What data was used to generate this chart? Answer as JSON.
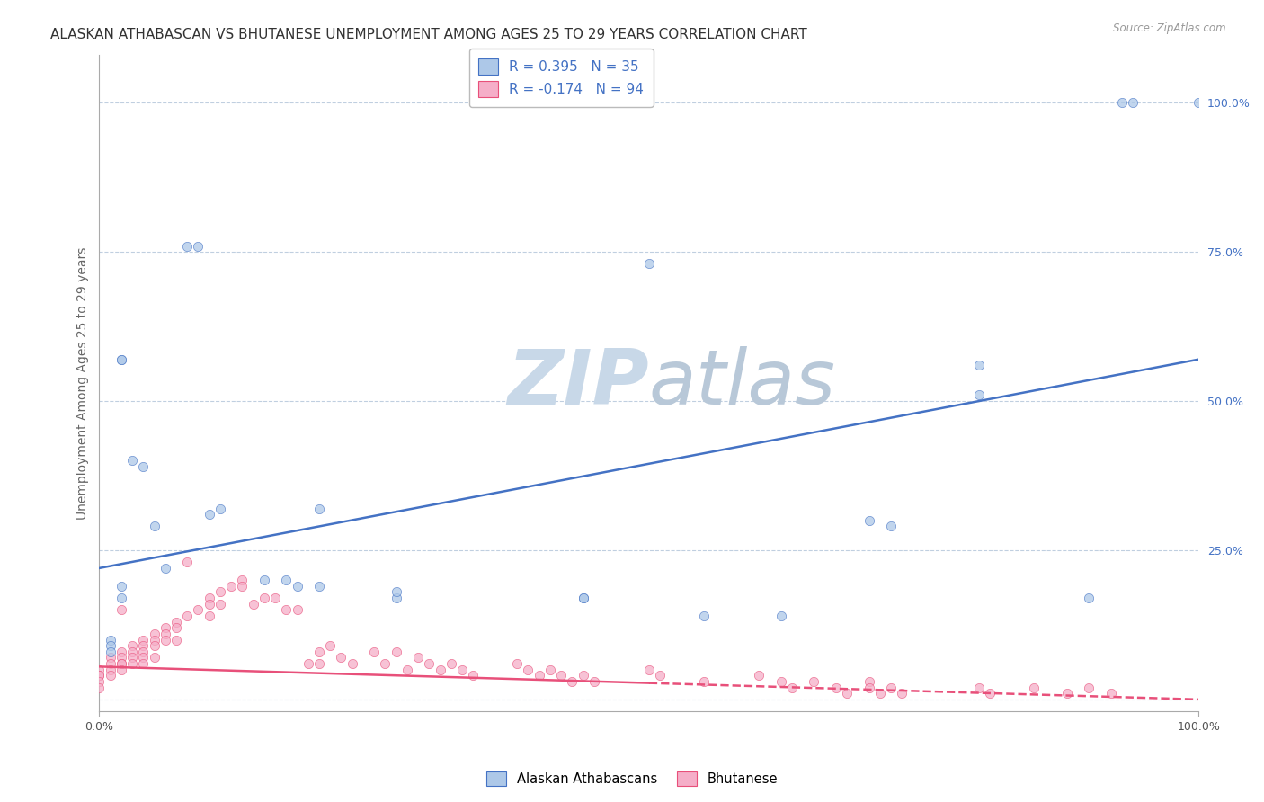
{
  "title": "ALASKAN ATHABASCAN VS BHUTANESE UNEMPLOYMENT AMONG AGES 25 TO 29 YEARS CORRELATION CHART",
  "source": "Source: ZipAtlas.com",
  "ylabel": "Unemployment Among Ages 25 to 29 years",
  "legend_label_blue": "Alaskan Athabascans",
  "legend_label_pink": "Bhutanese",
  "R_blue": 0.395,
  "N_blue": 35,
  "R_pink": -0.174,
  "N_pink": 94,
  "blue_scatter_x": [
    0.01,
    0.01,
    0.01,
    0.02,
    0.02,
    0.02,
    0.02,
    0.03,
    0.04,
    0.05,
    0.06,
    0.08,
    0.09,
    0.1,
    0.11,
    0.15,
    0.17,
    0.18,
    0.2,
    0.2,
    0.27,
    0.27,
    0.5,
    0.55,
    0.62,
    0.7,
    0.72,
    0.8,
    0.8,
    0.9,
    0.93,
    0.94,
    1.0,
    0.44,
    0.44
  ],
  "blue_scatter_y": [
    0.1,
    0.09,
    0.08,
    0.57,
    0.57,
    0.19,
    0.17,
    0.4,
    0.39,
    0.29,
    0.22,
    0.76,
    0.76,
    0.31,
    0.32,
    0.2,
    0.2,
    0.19,
    0.19,
    0.32,
    0.17,
    0.18,
    0.73,
    0.14,
    0.14,
    0.3,
    0.29,
    0.51,
    0.56,
    0.17,
    1.0,
    1.0,
    1.0,
    0.17,
    0.17
  ],
  "pink_scatter_x": [
    0.0,
    0.0,
    0.0,
    0.0,
    0.0,
    0.01,
    0.01,
    0.01,
    0.01,
    0.02,
    0.02,
    0.02,
    0.02,
    0.02,
    0.02,
    0.03,
    0.03,
    0.03,
    0.03,
    0.04,
    0.04,
    0.04,
    0.04,
    0.04,
    0.05,
    0.05,
    0.05,
    0.05,
    0.06,
    0.06,
    0.06,
    0.07,
    0.07,
    0.07,
    0.08,
    0.08,
    0.09,
    0.1,
    0.1,
    0.1,
    0.11,
    0.11,
    0.12,
    0.13,
    0.13,
    0.14,
    0.15,
    0.16,
    0.17,
    0.18,
    0.19,
    0.2,
    0.2,
    0.21,
    0.22,
    0.23,
    0.25,
    0.26,
    0.27,
    0.28,
    0.29,
    0.3,
    0.31,
    0.32,
    0.33,
    0.34,
    0.38,
    0.39,
    0.4,
    0.41,
    0.42,
    0.43,
    0.44,
    0.45,
    0.5,
    0.51,
    0.55,
    0.6,
    0.62,
    0.63,
    0.65,
    0.67,
    0.68,
    0.7,
    0.7,
    0.71,
    0.72,
    0.73,
    0.8,
    0.81,
    0.85,
    0.88,
    0.9,
    0.92
  ],
  "pink_scatter_y": [
    0.05,
    0.04,
    0.04,
    0.03,
    0.02,
    0.07,
    0.06,
    0.05,
    0.04,
    0.08,
    0.07,
    0.06,
    0.06,
    0.05,
    0.15,
    0.09,
    0.08,
    0.07,
    0.06,
    0.1,
    0.09,
    0.08,
    0.07,
    0.06,
    0.11,
    0.1,
    0.09,
    0.07,
    0.12,
    0.11,
    0.1,
    0.13,
    0.12,
    0.1,
    0.23,
    0.14,
    0.15,
    0.17,
    0.16,
    0.14,
    0.18,
    0.16,
    0.19,
    0.2,
    0.19,
    0.16,
    0.17,
    0.17,
    0.15,
    0.15,
    0.06,
    0.08,
    0.06,
    0.09,
    0.07,
    0.06,
    0.08,
    0.06,
    0.08,
    0.05,
    0.07,
    0.06,
    0.05,
    0.06,
    0.05,
    0.04,
    0.06,
    0.05,
    0.04,
    0.05,
    0.04,
    0.03,
    0.04,
    0.03,
    0.05,
    0.04,
    0.03,
    0.04,
    0.03,
    0.02,
    0.03,
    0.02,
    0.01,
    0.03,
    0.02,
    0.01,
    0.02,
    0.01,
    0.02,
    0.01,
    0.02,
    0.01,
    0.02,
    0.01
  ],
  "blue_color": "#adc8e8",
  "pink_color": "#f5aec8",
  "blue_line_color": "#4472c4",
  "pink_line_color": "#e8507a",
  "bg_color": "#ffffff",
  "watermark_zip_color": "#c8d8e8",
  "watermark_atlas_color": "#b8c8d8",
  "grid_color": "#c0cfe0",
  "title_fontsize": 11,
  "axis_label_fontsize": 10,
  "tick_fontsize": 9,
  "scatter_size": 55,
  "scatter_alpha": 0.75,
  "line_width": 1.8,
  "blue_line_intercept": 0.22,
  "blue_line_slope": 0.35,
  "pink_line_intercept": 0.055,
  "pink_line_slope": -0.055
}
